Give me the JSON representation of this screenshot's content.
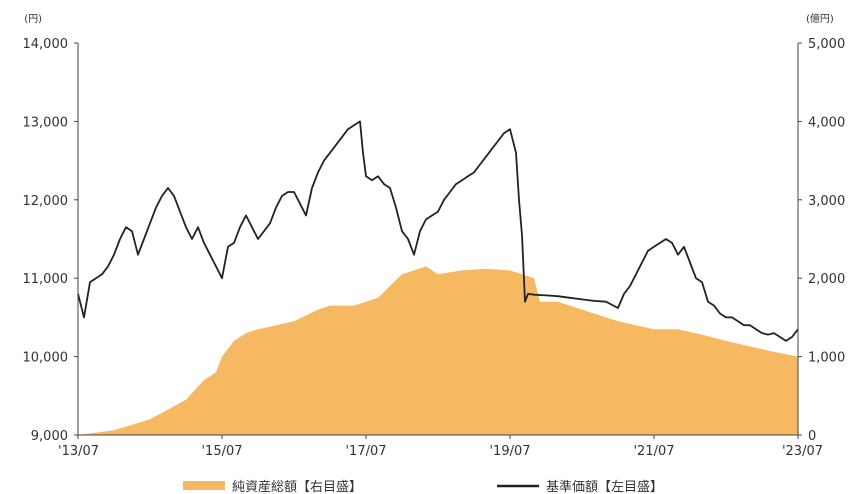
{
  "chart_data": {
    "type": "line",
    "title": "",
    "left_unit": "(円)",
    "right_unit": "(億円)",
    "x_ticks": [
      "'13/07",
      "'15/07",
      "'17/07",
      "'19/07",
      "'21/07",
      "'23/07"
    ],
    "x_tick_positions": [
      0,
      24,
      48,
      72,
      96,
      120
    ],
    "xlim": [
      0,
      120
    ],
    "y_left": {
      "ylim": [
        9000,
        14000
      ],
      "ticks": [
        "14,000",
        "13,000",
        "12,000",
        "11,000",
        "10,000",
        "9,000"
      ],
      "tick_values": [
        14000,
        13000,
        12000,
        11000,
        10000,
        9000
      ]
    },
    "y_right": {
      "ylim": [
        0,
        5000
      ],
      "ticks": [
        "5,000",
        "4,000",
        "3,000",
        "2,000",
        "1,000",
        "0"
      ],
      "tick_values": [
        5000,
        4000,
        3000,
        2000,
        1000,
        0
      ]
    },
    "grid": false,
    "legend_position": "bottom",
    "series": [
      {
        "name": "純資産総額【右目盛】",
        "type": "area",
        "axis": "right",
        "color": "#f7b862",
        "x": [
          0,
          6,
          12,
          18,
          21,
          23,
          24,
          26,
          28,
          30,
          36,
          40,
          42,
          46,
          48,
          50,
          52,
          54,
          56,
          58,
          60,
          64,
          68,
          72,
          74,
          76,
          77,
          80,
          84,
          90,
          96,
          100,
          104,
          108,
          112,
          116,
          120
        ],
        "values": [
          0,
          60,
          200,
          450,
          700,
          800,
          1000,
          1200,
          1300,
          1350,
          1450,
          1600,
          1650,
          1650,
          1700,
          1750,
          1900,
          2050,
          2100,
          2150,
          2050,
          2100,
          2120,
          2100,
          2050,
          2000,
          1700,
          1700,
          1600,
          1450,
          1350,
          1350,
          1280,
          1200,
          1130,
          1060,
          1000
        ]
      },
      {
        "name": "基準価額【左目盛】",
        "type": "line",
        "axis": "left",
        "color": "#222222",
        "x": [
          0,
          1,
          2,
          3,
          4,
          5,
          6,
          7,
          8,
          9,
          10,
          11,
          12,
          13,
          14,
          15,
          16,
          17,
          18,
          19,
          20,
          21,
          22,
          23,
          24,
          25,
          26,
          27,
          28,
          29,
          30,
          31,
          32,
          33,
          34,
          35,
          36,
          37,
          38,
          39,
          40,
          41,
          42,
          43,
          44,
          45,
          46,
          47,
          47.5,
          48,
          49,
          50,
          51,
          52,
          53,
          54,
          55,
          56,
          57,
          58,
          59,
          60,
          61,
          62,
          63,
          64,
          65,
          66,
          67,
          68,
          69,
          70,
          71,
          72,
          73,
          73.5,
          74,
          74.5,
          75,
          76,
          78,
          80,
          82,
          84,
          86,
          88,
          90,
          91,
          92,
          93,
          94,
          95,
          96,
          97,
          98,
          99,
          100,
          101,
          102,
          103,
          104,
          105,
          106,
          107,
          108,
          109,
          110,
          111,
          112,
          113,
          114,
          115,
          116,
          117,
          118,
          119,
          120
        ],
        "values": [
          10800,
          10500,
          10950,
          11000,
          11050,
          11150,
          11300,
          11500,
          11650,
          11600,
          11300,
          11500,
          11700,
          11900,
          12050,
          12150,
          12050,
          11850,
          11650,
          11500,
          11650,
          11450,
          11300,
          11150,
          11000,
          11400,
          11450,
          11650,
          11800,
          11650,
          11500,
          11600,
          11700,
          11900,
          12050,
          12100,
          12100,
          11950,
          11800,
          12150,
          12350,
          12500,
          12600,
          12700,
          12800,
          12900,
          12950,
          13000,
          12600,
          12300,
          12250,
          12300,
          12200,
          12150,
          11900,
          11600,
          11500,
          11300,
          11600,
          11750,
          11800,
          11850,
          12000,
          12100,
          12200,
          12250,
          12300,
          12350,
          12450,
          12550,
          12650,
          12750,
          12850,
          12900,
          12600,
          12000,
          11550,
          10700,
          10800,
          10790,
          10780,
          10770,
          10750,
          10730,
          10710,
          10700,
          10620,
          10800,
          10900,
          11050,
          11200,
          11350,
          11400,
          11450,
          11500,
          11450,
          11300,
          11400,
          11200,
          11000,
          10950,
          10700,
          10650,
          10550,
          10500,
          10500,
          10450,
          10400,
          10400,
          10350,
          10300,
          10280,
          10300,
          10250,
          10200,
          10250,
          10350
        ]
      }
    ]
  },
  "legend": {
    "items": [
      {
        "label": "純資産総額【右目盛】",
        "color": "#f7b862",
        "kind": "swatch"
      },
      {
        "label": "基準価額【左目盛】",
        "color": "#222222",
        "kind": "line"
      }
    ]
  }
}
